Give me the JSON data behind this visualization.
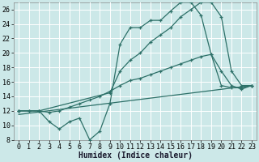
{
  "title": "",
  "xlabel": "Humidex (Indice chaleur)",
  "background_color": "#cce8e8",
  "grid_color": "#ffffff",
  "line_color": "#2d7068",
  "xlim": [
    -0.5,
    23.5
  ],
  "ylim": [
    8,
    27
  ],
  "xticks": [
    0,
    1,
    2,
    3,
    4,
    5,
    6,
    7,
    8,
    9,
    10,
    11,
    12,
    13,
    14,
    15,
    16,
    17,
    18,
    19,
    20,
    21,
    22,
    23
  ],
  "yticks": [
    8,
    10,
    12,
    14,
    16,
    18,
    20,
    22,
    24,
    26
  ],
  "line1_x": [
    0,
    1,
    2,
    3,
    4,
    5,
    6,
    7,
    8,
    9,
    10,
    11,
    12,
    13,
    14,
    15,
    16,
    17,
    18,
    19,
    20,
    21,
    22,
    23
  ],
  "line1_y": [
    12,
    12,
    12,
    10.5,
    9.5,
    10.5,
    11,
    8,
    9.2,
    13,
    21.2,
    23.5,
    23.5,
    24.5,
    24.5,
    25.8,
    27,
    27,
    25.2,
    19.8,
    17.5,
    15.5,
    15,
    15.5
  ],
  "line2_x": [
    0,
    2,
    9,
    10,
    11,
    12,
    13,
    14,
    15,
    16,
    17,
    18,
    19,
    20,
    21,
    22,
    23
  ],
  "line2_y": [
    12,
    12,
    14.5,
    17.5,
    19,
    20,
    21.5,
    22.5,
    23.5,
    25,
    26,
    27,
    27,
    25,
    17.5,
    15.5,
    15.5
  ],
  "line3_x": [
    0,
    1,
    2,
    3,
    4,
    5,
    6,
    7,
    8,
    9,
    10,
    11,
    12,
    13,
    14,
    15,
    16,
    17,
    18,
    19,
    20,
    21,
    22,
    23
  ],
  "line3_y": [
    12,
    12,
    12,
    11.8,
    12,
    12.5,
    13,
    13.5,
    14,
    14.7,
    15.5,
    16.2,
    16.5,
    17,
    17.5,
    18,
    18.5,
    19,
    19.5,
    19.8,
    15.5,
    15.2,
    15.2,
    15.5
  ],
  "line4_x": [
    0,
    23
  ],
  "line4_y": [
    11.5,
    15.5
  ],
  "fontsize_label": 7,
  "fontsize_tick": 6
}
